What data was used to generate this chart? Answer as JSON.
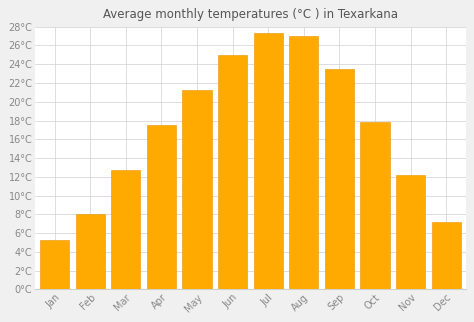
{
  "title": "Average monthly temperatures (°C ) in Texarkana",
  "months": [
    "Jan",
    "Feb",
    "Mar",
    "Apr",
    "May",
    "Jun",
    "Jul",
    "Aug",
    "Sep",
    "Oct",
    "Nov",
    "Dec"
  ],
  "values": [
    5.3,
    8.0,
    12.7,
    17.5,
    21.3,
    25.0,
    27.3,
    27.0,
    23.5,
    17.8,
    12.2,
    7.2
  ],
  "bar_color": "#FFAA00",
  "bar_edge_color": "#E89500",
  "background_color": "#f0f0f0",
  "plot_bg_color": "#ffffff",
  "grid_color": "#d0d0d0",
  "ylim": [
    0,
    28
  ],
  "yticks": [
    0,
    2,
    4,
    6,
    8,
    10,
    12,
    14,
    16,
    18,
    20,
    22,
    24,
    26,
    28
  ],
  "title_fontsize": 8.5,
  "tick_fontsize": 7.0,
  "title_color": "#555555",
  "tick_color": "#888888",
  "bar_width": 0.82
}
